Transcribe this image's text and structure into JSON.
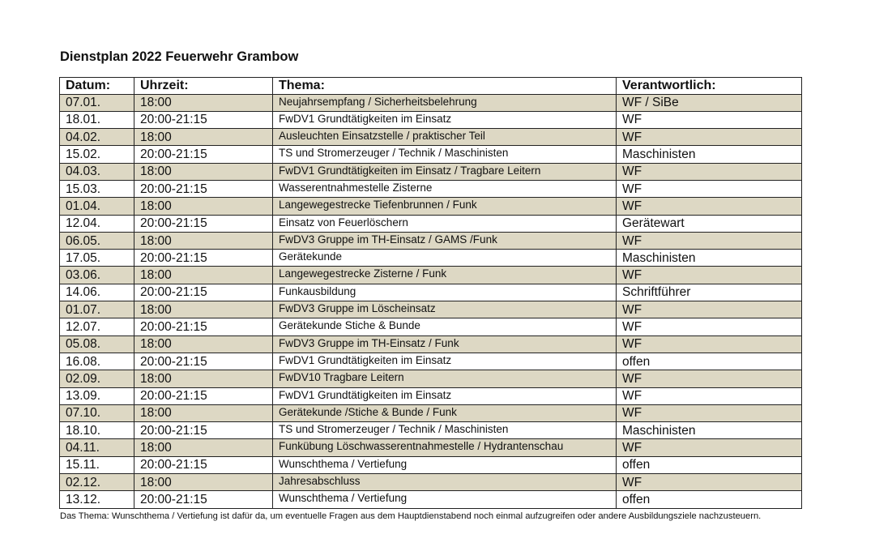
{
  "title": "Dienstplan 2022 Feuerwehr Grambow",
  "colors": {
    "shaded_row": "#ddd8c4"
  },
  "table": {
    "headers": [
      "Datum:",
      "Uhrzeit:",
      "Thema:",
      "Verantwortlich:"
    ],
    "rows": [
      {
        "datum": "07.01.",
        "uhrzeit": "18:00",
        "thema": "Neujahrsempfang / Sicherheitsbelehrung",
        "verantwortlich": "WF / SiBe",
        "shaded": true
      },
      {
        "datum": "18.01.",
        "uhrzeit": "20:00-21:15",
        "thema": "FwDV1 Grundtätigkeiten im Einsatz",
        "verantwortlich": "WF",
        "shaded": false
      },
      {
        "datum": "04.02.",
        "uhrzeit": "18:00",
        "thema": "Ausleuchten Einsatzstelle / praktischer Teil",
        "verantwortlich": "WF",
        "shaded": true
      },
      {
        "datum": "15.02.",
        "uhrzeit": "20:00-21:15",
        "thema": "TS und Stromerzeuger / Technik / Maschinisten",
        "verantwortlich": "Maschinisten",
        "shaded": false
      },
      {
        "datum": "04.03.",
        "uhrzeit": "18:00",
        "thema": "FwDV1 Grundtätigkeiten im Einsatz / Tragbare Leitern",
        "verantwortlich": "WF",
        "shaded": true
      },
      {
        "datum": "15.03.",
        "uhrzeit": "20:00-21:15",
        "thema": "Wasserentnahmestelle Zisterne",
        "verantwortlich": "WF",
        "shaded": false
      },
      {
        "datum": "01.04.",
        "uhrzeit": "18:00",
        "thema": "Langewegestrecke Tiefenbrunnen / Funk",
        "verantwortlich": "WF",
        "shaded": true
      },
      {
        "datum": "12.04.",
        "uhrzeit": "20:00-21:15",
        "thema": "Einsatz von Feuerlöschern",
        "verantwortlich": "Gerätewart",
        "shaded": false
      },
      {
        "datum": "06.05.",
        "uhrzeit": "18:00",
        "thema": "FwDV3 Gruppe im TH-Einsatz / GAMS /Funk",
        "verantwortlich": "WF",
        "shaded": true
      },
      {
        "datum": "17.05.",
        "uhrzeit": "20:00-21:15",
        "thema": "Gerätekunde",
        "verantwortlich": "Maschinisten",
        "shaded": false
      },
      {
        "datum": "03.06.",
        "uhrzeit": "18:00",
        "thema": "Langewegestrecke Zisterne / Funk",
        "verantwortlich": "WF",
        "shaded": true
      },
      {
        "datum": "14.06.",
        "uhrzeit": "20:00-21:15",
        "thema": "Funkausbildung",
        "verantwortlich": "Schriftführer",
        "shaded": false
      },
      {
        "datum": "01.07.",
        "uhrzeit": "18:00",
        "thema": "FwDV3 Gruppe im Löscheinsatz",
        "verantwortlich": "WF",
        "shaded": true
      },
      {
        "datum": "12.07.",
        "uhrzeit": "20:00-21:15",
        "thema": "Gerätekunde Stiche & Bunde",
        "verantwortlich": "WF",
        "shaded": false
      },
      {
        "datum": "05.08.",
        "uhrzeit": "18:00",
        "thema": "FwDV3 Gruppe im TH-Einsatz / Funk",
        "verantwortlich": "WF",
        "shaded": true
      },
      {
        "datum": "16.08.",
        "uhrzeit": "20:00-21:15",
        "thema": "FwDV1 Grundtätigkeiten im Einsatz",
        "verantwortlich": "offen",
        "shaded": false
      },
      {
        "datum": "02.09.",
        "uhrzeit": "18:00",
        "thema": "FwDV10 Tragbare Leitern",
        "verantwortlich": "WF",
        "shaded": true
      },
      {
        "datum": "13.09.",
        "uhrzeit": "20:00-21:15",
        "thema": "FwDV1 Grundtätigkeiten im Einsatz",
        "verantwortlich": "WF",
        "shaded": false
      },
      {
        "datum": "07.10.",
        "uhrzeit": "18:00",
        "thema": "Gerätekunde /Stiche & Bunde / Funk",
        "verantwortlich": "WF",
        "shaded": true
      },
      {
        "datum": "18.10.",
        "uhrzeit": "20:00-21:15",
        "thema": "TS und Stromerzeuger / Technik / Maschinisten",
        "verantwortlich": "Maschinisten",
        "shaded": false
      },
      {
        "datum": "04.11.",
        "uhrzeit": "18:00",
        "thema": "Funkübung Löschwasserentnahmestelle / Hydrantenschau",
        "verantwortlich": "WF",
        "shaded": true
      },
      {
        "datum": "15.11.",
        "uhrzeit": "20:00-21:15",
        "thema": "Wunschthema / Vertiefung",
        "verantwortlich": "offen",
        "shaded": false
      },
      {
        "datum": "02.12.",
        "uhrzeit": "18:00",
        "thema": "Jahresabschluss",
        "verantwortlich": "WF",
        "shaded": true
      },
      {
        "datum": "13.12.",
        "uhrzeit": "20:00-21:15",
        "thema": "Wunschthema / Vertiefung",
        "verantwortlich": "offen",
        "shaded": false
      }
    ]
  },
  "note": "Das Thema: Wunschthema / Vertiefung ist dafür da, um eventuelle Fragen aus dem Hauptdienstabend noch einmal aufzugreifen oder andere Ausbildungsziele nachzusteuern."
}
